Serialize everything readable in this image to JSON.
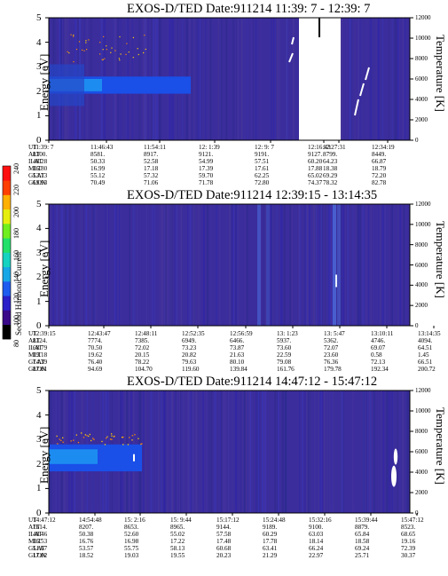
{
  "chart_data": [
    {
      "type": "heatmap",
      "title": "EXOS-D/TED    Date:911214  11:39: 7 - 12:39: 7",
      "ylabel": "Energy [eV]",
      "y2label": "Temperature [K]",
      "ylim": [
        0,
        5
      ],
      "y2lim": [
        0,
        12000
      ],
      "yticks": [
        "0",
        "1",
        "2",
        "3",
        "4",
        "5"
      ],
      "y2ticks": [
        "0",
        "2000",
        "4000",
        "6000",
        "8000",
        "10000",
        "12000"
      ],
      "rows": [
        {
          "name": "UT",
          "values": [
            "11:39: 7",
            "11:46:43",
            "11:54:11",
            "12: 1:39",
            "12: 9: 7",
            "12:16:43",
            "",
            "12:27:31",
            "12:34:19"
          ]
        },
        {
          "name": "ALT",
          "values": [
            "8100.",
            "8581.",
            "8917.",
            "9121.",
            "9191.",
            "9127.",
            "",
            "8799.",
            "8449."
          ]
        },
        {
          "name": "ILAT",
          "values": [
            "48.28",
            "50.33",
            "52.58",
            "54.99",
            "57.51",
            "60.20",
            "",
            "64.23",
            "66.87"
          ]
        },
        {
          "name": "MLT",
          "values": [
            "16.80",
            "16.99",
            "17.18",
            "17.39",
            "17.61",
            "17.88",
            "",
            "18.38",
            "18.79"
          ]
        },
        {
          "name": "GLAT",
          "values": [
            "53.13",
            "55.12",
            "57.32",
            "59.70",
            "62.25",
            "65.02",
            "",
            "69.29",
            "72.20"
          ]
        },
        {
          "name": "GLON",
          "values": [
            "69.93",
            "70.49",
            "71.06",
            "71.78",
            "72.80",
            "74.37",
            "",
            "78.32",
            "82.78"
          ]
        }
      ]
    },
    {
      "type": "heatmap",
      "title": "EXOS-D/TED    Date:911214  12:39:15 - 13:14:35",
      "ylabel": "Energy [eV]",
      "y2label": "Temperature [K]",
      "ylim": [
        0,
        5
      ],
      "y2lim": [
        0,
        12000
      ],
      "yticks": [
        "0",
        "1",
        "2",
        "3",
        "4",
        "5"
      ],
      "y2ticks": [
        "0",
        "2000",
        "4000",
        "6000",
        "8000",
        "10000",
        "12000"
      ],
      "rows": [
        {
          "name": "UT",
          "values": [
            "12:39:15",
            "12:43:47",
            "12:48:11",
            "12:52:35",
            "12:56:59",
            "13: 1:23",
            "13: 5:47",
            "13:10:11",
            "13:14:35"
          ]
        },
        {
          "name": "ALT",
          "values": [
            "8124.",
            "7774.",
            "7385.",
            "6949.",
            "6466.",
            "5937.",
            "5362.",
            "4746.",
            "4094."
          ]
        },
        {
          "name": "ILAT",
          "values": [
            "68.79",
            "70.50",
            "72.02",
            "73.23",
            "73.87",
            "73.60",
            "72.07",
            "69.07",
            "64.51"
          ]
        },
        {
          "name": "MLT",
          "values": [
            "19.18",
            "19.62",
            "20.15",
            "20.82",
            "21.63",
            "22.59",
            "23.60",
            "0.58",
            "1.45"
          ]
        },
        {
          "name": "GLAT",
          "values": [
            "74.39",
            "76.40",
            "78.22",
            "79.63",
            "80.10",
            "79.08",
            "76.36",
            "72.13",
            "66.51"
          ]
        },
        {
          "name": "GLON",
          "values": [
            "87.81",
            "94.69",
            "104.70",
            "119.60",
            "139.84",
            "161.76",
            "179.78",
            "192.34",
            "200.72"
          ]
        }
      ]
    },
    {
      "type": "heatmap",
      "title": "EXOS-D/TED    Date:911214  14:47:12 - 15:47:12",
      "ylabel": "Energy [eV]",
      "y2label": "Temperature [K]",
      "ylim": [
        0,
        5
      ],
      "y2lim": [
        0,
        12000
      ],
      "yticks": [
        "0",
        "1",
        "2",
        "3",
        "4",
        "5"
      ],
      "y2ticks": [
        "0",
        "2000",
        "4000",
        "6000",
        "8000",
        "10000",
        "12000"
      ],
      "rows": [
        {
          "name": "UT",
          "values": [
            "14:47:12",
            "14:54:48",
            "15: 2:16",
            "15: 9:44",
            "15:17:12",
            "15:24:48",
            "15:32:16",
            "15:39:44",
            "15:47:12"
          ]
        },
        {
          "name": "ALT",
          "values": [
            "7614.",
            "8207.",
            "8653.",
            "8965.",
            "9144.",
            "9189.",
            "9100.",
            "8879.",
            "8523."
          ]
        },
        {
          "name": "ILAT",
          "values": [
            "48.46",
            "50.38",
            "52.60",
            "55.02",
            "57.58",
            "60.29",
            "63.03",
            "65.84",
            "68.65"
          ]
        },
        {
          "name": "MLT",
          "values": [
            "16.53",
            "16.76",
            "16.98",
            "17.22",
            "17.48",
            "17.78",
            "18.14",
            "18.58",
            "19.16"
          ]
        },
        {
          "name": "GLAT",
          "values": [
            "51.67",
            "53.57",
            "55.75",
            "58.13",
            "60.68",
            "63.41",
            "66.24",
            "69.24",
            "72.39"
          ]
        },
        {
          "name": "GLON",
          "values": [
            "17.82",
            "18.52",
            "19.03",
            "19.55",
            "20.23",
            "21.29",
            "22.97",
            "25.71",
            "30.37"
          ]
        }
      ]
    }
  ],
  "colorbar": {
    "label": "Second Harmonic Current",
    "ticks": [
      "80",
      "100",
      "120",
      "140",
      "160",
      "180",
      "200",
      "220",
      "240"
    ],
    "range": [
      80,
      240
    ],
    "colors": [
      "#000000",
      "#3a0a8a",
      "#2a1fc8",
      "#1e5cf0",
      "#18a7e6",
      "#16d2c0",
      "#22e06a",
      "#70ee20",
      "#e6ee10",
      "#ffb000",
      "#ff4000",
      "#ff1010"
    ]
  }
}
